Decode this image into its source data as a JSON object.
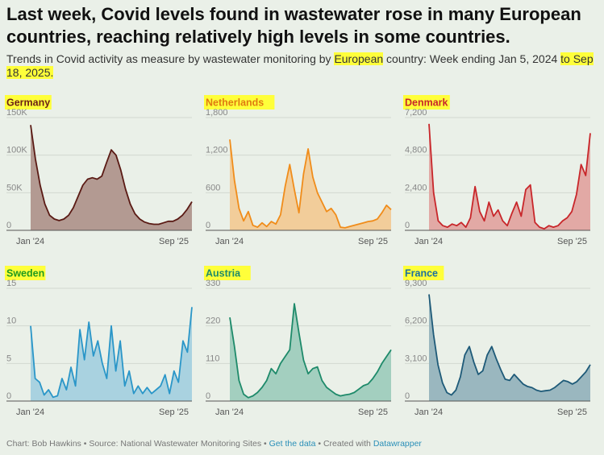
{
  "title": "Last week, Covid levels found in wastewater rose in many European countries, reaching relatively high levels in some countries.",
  "subtitle": {
    "part1": "Trends in Covid activity as measure by wastewater monitoring by ",
    "part2": "European",
    "part3": " country: Week ending Jan 5, 2024 ",
    "part4": "to Sep 18, 2025."
  },
  "footer": {
    "chart_by": "Chart: Bob Hawkins",
    "sep1": " • ",
    "source": "Source: National Wastewater Monitoring Sites",
    "sep2": " • ",
    "get_data": "Get the data",
    "sep3": " • ",
    "created": "Created with ",
    "tool": "Datawrapper"
  },
  "chart_data": [
    {
      "type": "area",
      "title": "Germany",
      "color": "#5a1a14",
      "fill": "#b39a92",
      "label_color": "#6b1f16",
      "ylim": [
        0,
        150000
      ],
      "yticks": [
        0,
        50000,
        100000,
        150000
      ],
      "ytick_labels": [
        "0",
        "50K",
        "100K",
        "150K"
      ],
      "xtick_labels": [
        "Jan '24",
        "Sep '25"
      ],
      "values": [
        140000,
        95000,
        60000,
        35000,
        20000,
        15000,
        13000,
        15000,
        20000,
        30000,
        45000,
        60000,
        68000,
        70000,
        68000,
        72000,
        90000,
        107000,
        100000,
        80000,
        55000,
        35000,
        22000,
        15000,
        11000,
        9000,
        8000,
        8000,
        10000,
        12000,
        12000,
        15000,
        20000,
        28000,
        38000
      ]
    },
    {
      "type": "area",
      "title": "Netherlands",
      "color": "#f08c1a",
      "fill": "#f2cd9a",
      "label_color": "#e07b10",
      "ylim": [
        0,
        1800
      ],
      "yticks": [
        0,
        600,
        1200,
        1800
      ],
      "ytick_labels": [
        "0",
        "600",
        "1,200",
        "1,800"
      ],
      "xtick_labels": [
        "Jan '24",
        "Sep '25"
      ],
      "values": [
        1450,
        800,
        350,
        150,
        300,
        80,
        50,
        120,
        60,
        140,
        100,
        250,
        700,
        1050,
        650,
        280,
        900,
        1300,
        850,
        600,
        450,
        300,
        350,
        250,
        50,
        40,
        60,
        80,
        100,
        120,
        140,
        150,
        180,
        280,
        400,
        330
      ]
    },
    {
      "type": "area",
      "title": "Denmark",
      "color": "#c8262a",
      "fill": "#e2a9a5",
      "label_color": "#c8262a",
      "ylim": [
        0,
        7200
      ],
      "yticks": [
        0,
        2400,
        4800,
        7200
      ],
      "ytick_labels": [
        "0",
        "2,400",
        "4,800",
        "7,200"
      ],
      "xtick_labels": [
        "Jan '24",
        "Sep '25"
      ],
      "values": [
        6800,
        2400,
        600,
        300,
        200,
        400,
        300,
        500,
        200,
        800,
        2800,
        1200,
        600,
        1800,
        900,
        1300,
        600,
        300,
        1100,
        1800,
        900,
        2600,
        2900,
        500,
        200,
        100,
        300,
        200,
        300,
        600,
        800,
        1200,
        2300,
        4200,
        3500,
        6200
      ]
    },
    {
      "type": "area",
      "title": "Sweden",
      "color": "#2a96c8",
      "fill": "#a9d2e0",
      "label_color": "#1f9a1f",
      "ylim": [
        0,
        15
      ],
      "yticks": [
        0,
        5,
        10,
        15
      ],
      "ytick_labels": [
        "0",
        "5",
        "10",
        "15"
      ],
      "xtick_labels": [
        "Jan '24",
        "Sep '25"
      ],
      "values": [
        10,
        3,
        2.5,
        0.8,
        1.5,
        0.5,
        0.7,
        3,
        1.5,
        4.5,
        2,
        9.5,
        5.5,
        10.5,
        6,
        8,
        5,
        3,
        10,
        4,
        8,
        2,
        4,
        1,
        2,
        1,
        1.8,
        1,
        1.5,
        2,
        3.5,
        1,
        4,
        2.5,
        8,
        6.5,
        12.5
      ]
    },
    {
      "type": "area",
      "title": "Austria",
      "color": "#1e8a6a",
      "fill": "#a3cfbf",
      "label_color": "#1e8a6a",
      "ylim": [
        0,
        330
      ],
      "yticks": [
        0,
        110,
        220,
        330
      ],
      "ytick_labels": [
        "0",
        "110",
        "220",
        "330"
      ],
      "xtick_labels": [
        "Jan '24",
        "Sep '25"
      ],
      "values": [
        245,
        160,
        60,
        20,
        10,
        15,
        25,
        40,
        60,
        95,
        80,
        110,
        130,
        150,
        285,
        200,
        120,
        80,
        95,
        100,
        60,
        40,
        30,
        20,
        15,
        18,
        20,
        25,
        35,
        45,
        50,
        65,
        85,
        110,
        130,
        150
      ]
    },
    {
      "type": "area",
      "title": "France",
      "color": "#1e5a78",
      "fill": "#9ab7bf",
      "label_color": "#1a6fa0",
      "ylim": [
        0,
        9300
      ],
      "yticks": [
        0,
        3100,
        6200,
        9300
      ],
      "ytick_labels": [
        "0",
        "3,100",
        "6,200",
        "9,300"
      ],
      "xtick_labels": [
        "Jan '24",
        "Sep '25"
      ],
      "values": [
        8800,
        5500,
        3000,
        1500,
        700,
        500,
        900,
        2000,
        3800,
        4500,
        3200,
        2200,
        2500,
        3800,
        4500,
        3500,
        2600,
        1800,
        1700,
        2200,
        1800,
        1400,
        1200,
        1100,
        900,
        800,
        850,
        900,
        1100,
        1400,
        1700,
        1600,
        1400,
        1600,
        2000,
        2400,
        3000
      ]
    }
  ]
}
